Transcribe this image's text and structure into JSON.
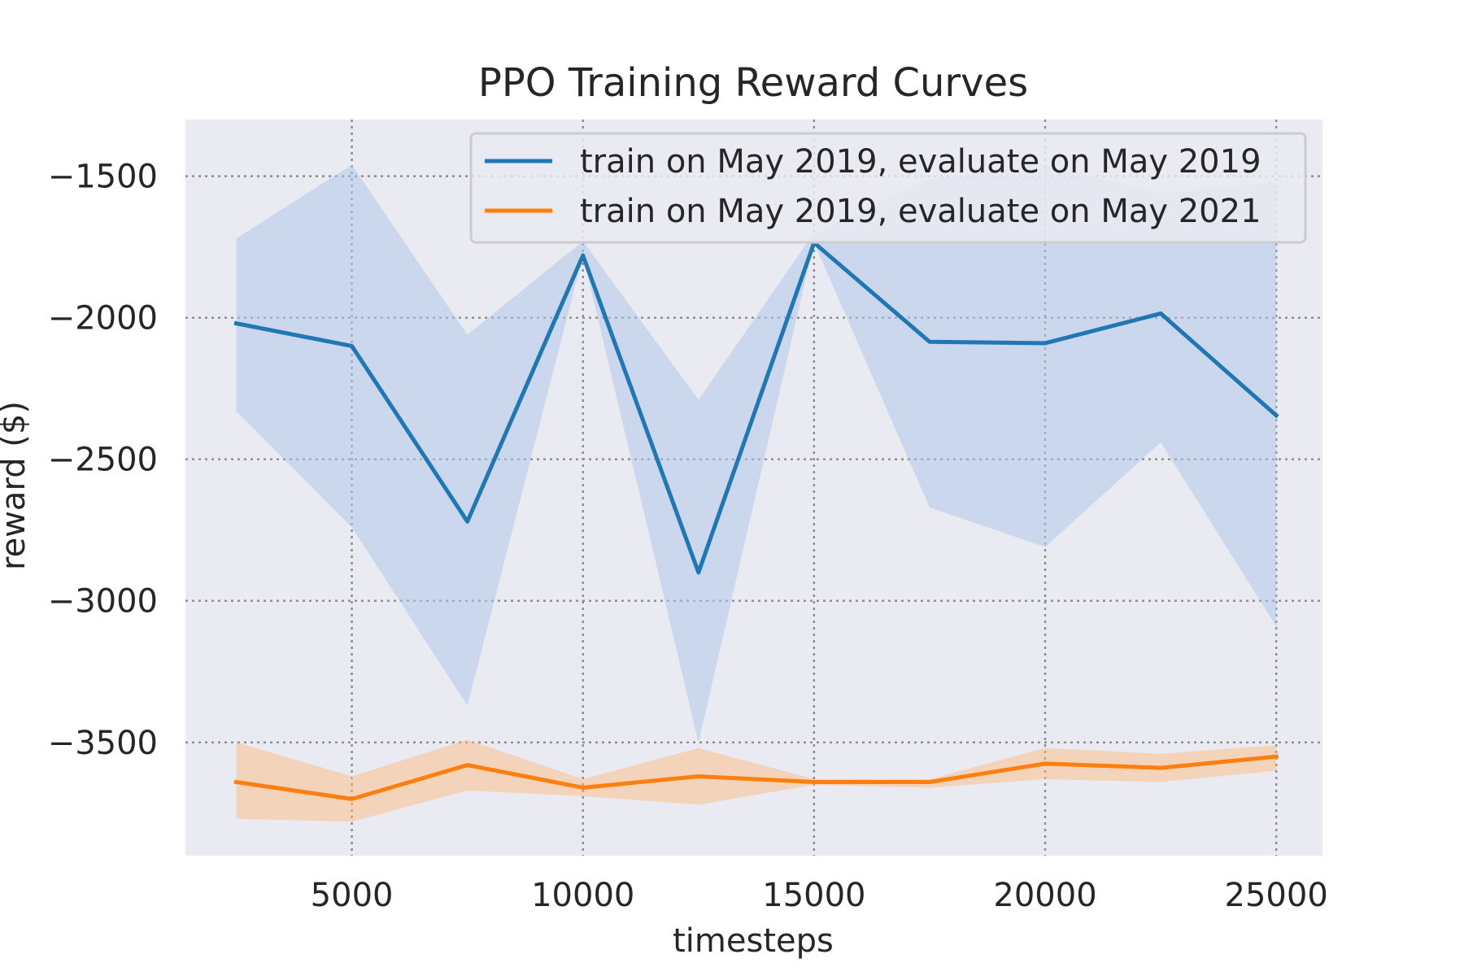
{
  "chart_data": {
    "type": "line",
    "title": "PPO Training Reward Curves",
    "xlabel": "timesteps",
    "ylabel": "reward ($)",
    "xlim": [
      1400,
      26000
    ],
    "ylim": [
      -3900,
      -1300
    ],
    "xticks": [
      5000,
      10000,
      15000,
      20000,
      25000
    ],
    "xtick_labels": [
      "5000",
      "10000",
      "15000",
      "20000",
      "25000"
    ],
    "yticks": [
      -3500,
      -3000,
      -2500,
      -2000,
      -1500
    ],
    "ytick_labels": [
      "−3500",
      "−3000",
      "−2500",
      "−2000",
      "−1500"
    ],
    "grid": true,
    "legend_position": "top-right",
    "series": [
      {
        "name": "train on May 2019, evaluate on May 2019",
        "color": "#1f77b4",
        "band_color": "#aec7e8",
        "x": [
          2500,
          5000,
          7500,
          10000,
          12500,
          15000,
          17500,
          20000,
          22500,
          25000
        ],
        "values": [
          -2020,
          -2100,
          -2720,
          -1780,
          -2900,
          -1735,
          -2085,
          -2090,
          -1985,
          -2345
        ],
        "lower": [
          -2330,
          -2740,
          -3370,
          -1780,
          -3500,
          -1735,
          -2670,
          -2810,
          -2440,
          -3090
        ],
        "upper": [
          -1720,
          -1460,
          -2060,
          -1730,
          -2290,
          -1700,
          -1510,
          -1460,
          -1560,
          -1520
        ]
      },
      {
        "name": "train on May 2019, evaluate on May 2021",
        "color": "#ff7f0e",
        "band_color": "#ffbb78",
        "x": [
          2500,
          5000,
          7500,
          10000,
          12500,
          15000,
          17500,
          20000,
          22500,
          25000
        ],
        "values": [
          -3640,
          -3700,
          -3580,
          -3660,
          -3620,
          -3640,
          -3640,
          -3575,
          -3590,
          -3550
        ],
        "lower": [
          -3770,
          -3780,
          -3670,
          -3690,
          -3720,
          -3650,
          -3660,
          -3630,
          -3640,
          -3600
        ],
        "upper": [
          -3500,
          -3620,
          -3490,
          -3630,
          -3520,
          -3630,
          -3630,
          -3520,
          -3540,
          -3510
        ]
      }
    ]
  }
}
